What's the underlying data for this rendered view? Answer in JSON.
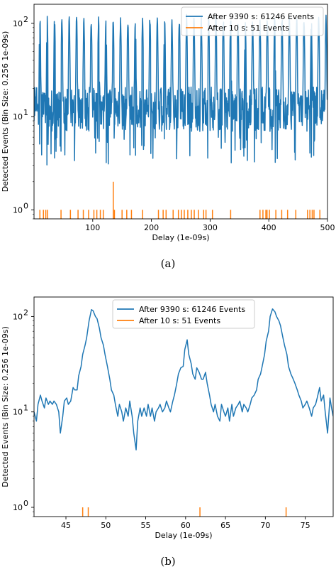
{
  "chart_data": [
    {
      "type": "line",
      "panel_caption": "(a)",
      "title": "",
      "xlabel": "Delay (1e-09s)",
      "ylabel": "Detected Events (Bin Size: 0.256 1e-09s)",
      "xlim": [
        0,
        500
      ],
      "ylim": [
        0.8,
        160
      ],
      "yscale": "log",
      "xticks": [
        100,
        200,
        300,
        400,
        500
      ],
      "xtick_labels": [
        "100",
        "200",
        "300",
        "400",
        "500"
      ],
      "yticks": [
        1,
        10,
        100
      ],
      "ytick_labels": [
        "10",
        "10",
        "10"
      ],
      "ytick_exponents": [
        "0",
        "1",
        "2"
      ],
      "grid": false,
      "legend_position": "top-right",
      "series": [
        {
          "name": "After 9390 s: 61246 Events",
          "color": "#1f77b4",
          "generator": "periodic-peaks",
          "period": 12.5,
          "first_peak": 10,
          "peak_value": 110,
          "baseline_value": 12,
          "baseline_spread": 0.55,
          "peak_width": 0.9,
          "step": 0.5,
          "min_value": 3,
          "seed": 7
        },
        {
          "name": "After 10 s: 51 Events",
          "color": "#ff7f0e",
          "events": [
            [
              10,
              1
            ],
            [
              16,
              1
            ],
            [
              20,
              1
            ],
            [
              23,
              1
            ],
            [
              46,
              1
            ],
            [
              62,
              1
            ],
            [
              75,
              1
            ],
            [
              84,
              1
            ],
            [
              93,
              1
            ],
            [
              102,
              1
            ],
            [
              107,
              1
            ],
            [
              113,
              1
            ],
            [
              118,
              1
            ],
            [
              135,
              2
            ],
            [
              137,
              1
            ],
            [
              150,
              1
            ],
            [
              158,
              1
            ],
            [
              166,
              1
            ],
            [
              185,
              1
            ],
            [
              212,
              1
            ],
            [
              220,
              1
            ],
            [
              225,
              1
            ],
            [
              237,
              1
            ],
            [
              246,
              1
            ],
            [
              251,
              1
            ],
            [
              256,
              1
            ],
            [
              262,
              1
            ],
            [
              268,
              1
            ],
            [
              273,
              1
            ],
            [
              280,
              1
            ],
            [
              289,
              1
            ],
            [
              293,
              1
            ],
            [
              304,
              1
            ],
            [
              335,
              1
            ],
            [
              385,
              1
            ],
            [
              390,
              1
            ],
            [
              395,
              1
            ],
            [
              397,
              1
            ],
            [
              401,
              1
            ],
            [
              412,
              1
            ],
            [
              422,
              1
            ],
            [
              432,
              1
            ],
            [
              446,
              1
            ],
            [
              466,
              1
            ],
            [
              470,
              1
            ],
            [
              474,
              1
            ],
            [
              477,
              1
            ],
            [
              487,
              1
            ]
          ]
        }
      ]
    },
    {
      "type": "line",
      "panel_caption": "(b)",
      "title": "",
      "xlabel": "Delay (1e-09s)",
      "ylabel": "Detected Events (Bin Size: 0.256 1e-09s)",
      "xlim": [
        41,
        78.5
      ],
      "ylim": [
        0.8,
        160
      ],
      "yscale": "log",
      "xticks": [
        45,
        50,
        55,
        60,
        65,
        70,
        75
      ],
      "xtick_labels": [
        "45",
        "50",
        "55",
        "60",
        "65",
        "70",
        "75"
      ],
      "yticks": [
        1,
        10,
        100
      ],
      "ytick_labels": [
        "10",
        "10",
        "10"
      ],
      "ytick_exponents": [
        "0",
        "1",
        "2"
      ],
      "grid": false,
      "legend_position": "top-center",
      "series": [
        {
          "name": "After 9390 s: 61246 Events",
          "color": "#1f77b4",
          "x": [
            41.0,
            41.3,
            41.5,
            41.8,
            42.0,
            42.3,
            42.5,
            42.8,
            43.0,
            43.3,
            43.5,
            43.8,
            44.1,
            44.3,
            44.6,
            44.8,
            45.1,
            45.3,
            45.6,
            45.9,
            46.1,
            46.4,
            46.6,
            46.9,
            47.1,
            47.4,
            47.6,
            47.9,
            48.2,
            48.4,
            48.7,
            48.9,
            49.2,
            49.4,
            49.7,
            49.9,
            50.2,
            50.5,
            50.7,
            51.0,
            51.2,
            51.5,
            51.7,
            52.0,
            52.2,
            52.5,
            52.8,
            53.0,
            53.3,
            53.5,
            53.8,
            54.0,
            54.3,
            54.5,
            54.8,
            55.1,
            55.3,
            55.6,
            55.8,
            56.1,
            56.3,
            56.6,
            56.8,
            57.1,
            57.4,
            57.6,
            57.9,
            58.1,
            58.4,
            58.6,
            58.9,
            59.1,
            59.4,
            59.7,
            59.9,
            60.2,
            60.4,
            60.7,
            60.9,
            61.2,
            61.4,
            61.7,
            62.0,
            62.2,
            62.5,
            62.7,
            63.0,
            63.2,
            63.5,
            63.7,
            64.0,
            64.3,
            64.5,
            64.8,
            65.0,
            65.3,
            65.5,
            65.8,
            66.0,
            66.3,
            66.6,
            66.8,
            67.1,
            67.3,
            67.6,
            67.8,
            68.1,
            68.3,
            68.6,
            68.9,
            69.1,
            69.4,
            69.6,
            69.9,
            70.1,
            70.4,
            70.6,
            70.9,
            71.2,
            71.4,
            71.7,
            71.9,
            72.2,
            72.4,
            72.7,
            72.9,
            73.2,
            73.5,
            73.7,
            74.0,
            74.2,
            74.5,
            74.7,
            75.0,
            75.2,
            75.5,
            75.8,
            76.0,
            76.3,
            76.5,
            76.8,
            77.0,
            77.3,
            77.5,
            77.8,
            78.1,
            78.3,
            78.5
          ],
          "values": [
            10,
            8,
            12,
            15,
            13,
            11,
            14,
            12,
            13,
            12,
            13,
            12,
            10,
            6,
            9,
            13,
            14,
            12,
            13,
            18,
            17,
            17,
            24,
            30,
            40,
            50,
            60,
            90,
            118,
            115,
            100,
            95,
            75,
            60,
            50,
            40,
            30,
            22,
            17,
            15,
            12,
            9,
            12,
            10,
            8,
            11,
            9,
            13,
            9,
            6,
            4,
            8,
            11,
            9,
            11,
            9,
            12,
            9,
            11,
            8,
            10,
            11,
            12,
            10,
            11,
            13,
            11,
            10,
            13,
            15,
            20,
            25,
            29,
            30,
            45,
            57,
            40,
            32,
            25,
            22,
            29,
            26,
            22,
            22,
            26,
            20,
            15,
            12,
            10,
            12,
            9,
            8,
            12,
            10,
            9,
            11,
            8,
            12,
            9,
            11,
            12,
            13,
            10,
            12,
            11,
            10,
            12,
            14,
            15,
            17,
            22,
            25,
            30,
            40,
            55,
            70,
            100,
            120,
            112,
            100,
            90,
            80,
            60,
            50,
            40,
            30,
            25,
            22,
            20,
            17,
            15,
            13,
            11,
            12,
            13,
            11,
            9,
            11,
            12,
            14,
            18,
            13,
            15,
            10,
            6,
            14,
            11,
            9
          ]
        },
        {
          "name": "After 10 s: 51 Events",
          "color": "#ff7f0e",
          "events": [
            [
              47.1,
              1
            ],
            [
              47.8,
              1
            ],
            [
              61.8,
              1
            ],
            [
              72.6,
              1
            ]
          ]
        }
      ]
    }
  ]
}
